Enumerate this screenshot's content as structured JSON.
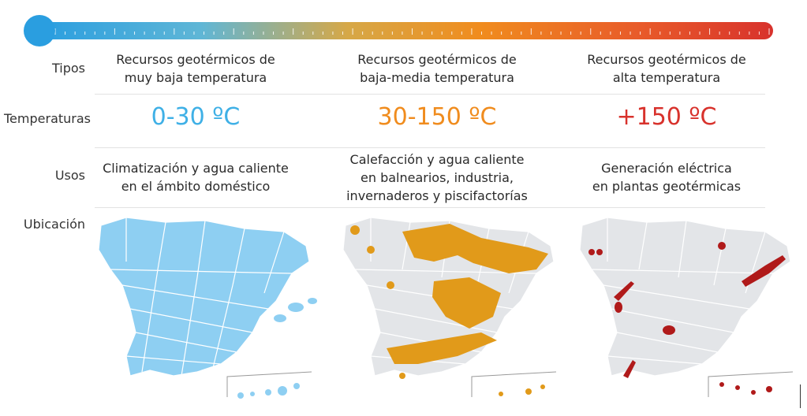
{
  "rows": {
    "tipos_label": "Tipos",
    "temperaturas_label": "Temperaturas",
    "usos_label": "Usos",
    "ubicacion_label": "Ubicación"
  },
  "columns": [
    {
      "tipo": [
        "Recursos geotérmicos de",
        "muy baja temperatura"
      ],
      "temperatura": "0-30 ºC",
      "uso": [
        "Climatización y agua caliente",
        "en el ámbito doméstico"
      ],
      "color": "#3fb0e6",
      "map_fill": "#8ecff2",
      "highlight": "#8ecff2"
    },
    {
      "tipo": [
        "Recursos geotérmicos de",
        "baja-media temperatura"
      ],
      "temperatura": "30-150 ºC",
      "uso": [
        "Calefacción y agua caliente",
        "en balnearios, industria,",
        "invernaderos y piscifactorías"
      ],
      "color": "#f08c1e",
      "map_fill": "#e3e5e8",
      "highlight": "#e19a1a"
    },
    {
      "tipo": [
        "Recursos geotérmicos de",
        "alta temperatura"
      ],
      "temperatura": "+150 ºC",
      "uso": [
        "Generación eléctrica",
        "en plantas geotérmicas"
      ],
      "color": "#d8322c",
      "map_fill": "#e3e5e8",
      "highlight": "#b01a1a"
    }
  ],
  "scale_gradient": [
    "#2a9ee0",
    "#34b1e0",
    "#d6a847",
    "#f08c1e",
    "#e64a2a",
    "#d8322c"
  ]
}
